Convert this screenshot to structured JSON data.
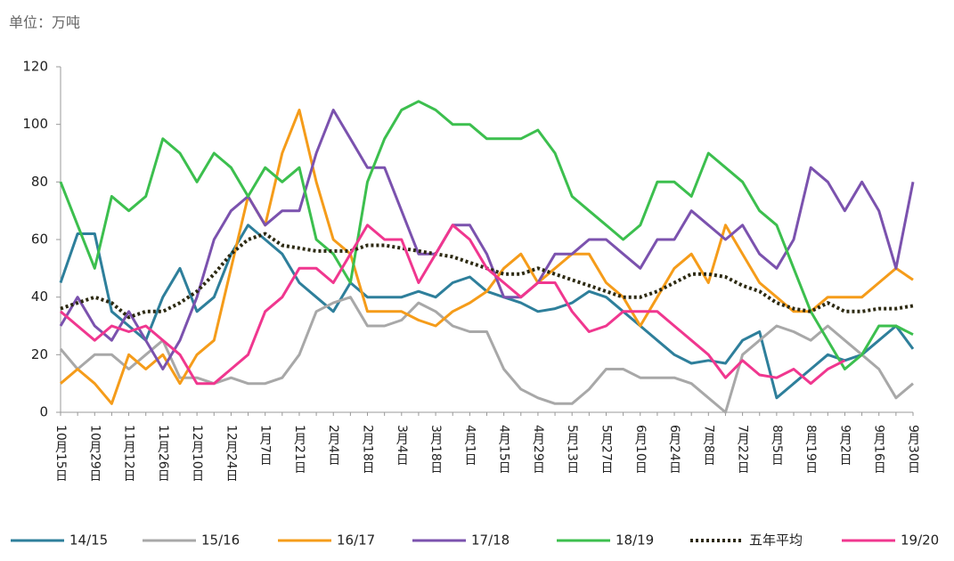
{
  "chart_data": {
    "type": "line",
    "unit_label": "单位：万吨",
    "categories": [
      "10月15日",
      null,
      "10月29日",
      null,
      "11月12日",
      null,
      "11月26日",
      null,
      "12月10日",
      null,
      "12月24日",
      null,
      "1月7日",
      null,
      "1月21日",
      null,
      "2月4日",
      null,
      "2月18日",
      null,
      "3月4日",
      null,
      "3月18日",
      null,
      "4月1日",
      null,
      "4月15日",
      null,
      "4月29日",
      null,
      "5月13日",
      null,
      "5月27日",
      null,
      "6月10日",
      null,
      "6月24日",
      null,
      "7月8日",
      null,
      "7月22日",
      null,
      "8月5日",
      null,
      "8月19日",
      null,
      "9月2日",
      null,
      "9月16日",
      null,
      "9月30日"
    ],
    "ylim": [
      0,
      120
    ],
    "yticks": [
      0,
      20,
      40,
      60,
      80,
      100,
      120
    ],
    "series": [
      {
        "name": "14/15",
        "color": "#2e7f9b",
        "dash": false,
        "values": [
          45,
          62,
          62,
          35,
          30,
          25,
          40,
          50,
          35,
          40,
          55,
          65,
          60,
          55,
          45,
          40,
          35,
          45,
          40,
          40,
          40,
          42,
          40,
          45,
          47,
          42,
          40,
          38,
          35,
          36,
          38,
          42,
          40,
          35,
          30,
          25,
          20,
          17,
          18,
          17,
          25,
          28,
          5,
          10,
          15,
          20,
          18,
          20,
          25,
          30,
          22
        ]
      },
      {
        "name": "15/16",
        "color": "#a8a8a8",
        "dash": false,
        "values": [
          22,
          15,
          20,
          20,
          15,
          20,
          25,
          12,
          12,
          10,
          12,
          10,
          10,
          12,
          20,
          35,
          38,
          40,
          30,
          30,
          32,
          38,
          35,
          30,
          28,
          28,
          15,
          8,
          5,
          3,
          3,
          8,
          15,
          15,
          12,
          12,
          12,
          10,
          5,
          0,
          20,
          25,
          30,
          28,
          25,
          30,
          25,
          20,
          15,
          5,
          10
        ]
      },
      {
        "name": "16/17",
        "color": "#f59c1a",
        "dash": false,
        "values": [
          10,
          15,
          10,
          3,
          20,
          15,
          20,
          10,
          20,
          25,
          50,
          75,
          65,
          90,
          105,
          80,
          60,
          55,
          35,
          35,
          35,
          32,
          30,
          35,
          38,
          42,
          50,
          55,
          45,
          50,
          55,
          55,
          45,
          40,
          30,
          40,
          50,
          55,
          45,
          65,
          55,
          45,
          40,
          35,
          35,
          40,
          40,
          40,
          45,
          50,
          46
        ]
      },
      {
        "name": "17/18",
        "color": "#7b52ae",
        "dash": false,
        "values": [
          30,
          40,
          30,
          25,
          35,
          25,
          15,
          25,
          40,
          60,
          70,
          75,
          65,
          70,
          70,
          90,
          105,
          95,
          85,
          85,
          70,
          55,
          55,
          65,
          65,
          55,
          40,
          40,
          45,
          55,
          55,
          60,
          60,
          55,
          50,
          60,
          60,
          70,
          65,
          60,
          65,
          55,
          50,
          60,
          85,
          80,
          70,
          80,
          70,
          50,
          80
        ]
      },
      {
        "name": "18/19",
        "color": "#3cbf4e",
        "dash": false,
        "values": [
          80,
          65,
          50,
          75,
          70,
          75,
          95,
          90,
          80,
          90,
          85,
          75,
          85,
          80,
          85,
          60,
          55,
          45,
          80,
          95,
          105,
          108,
          105,
          100,
          100,
          95,
          95,
          95,
          98,
          90,
          75,
          70,
          65,
          60,
          65,
          80,
          80,
          75,
          90,
          85,
          80,
          70,
          65,
          50,
          35,
          25,
          15,
          20,
          30,
          30,
          27
        ]
      },
      {
        "name": "五年平均",
        "color": "#2d2a12",
        "dash": true,
        "values": [
          36,
          38,
          40,
          38,
          33,
          35,
          35,
          38,
          42,
          48,
          55,
          60,
          62,
          58,
          57,
          56,
          56,
          56,
          58,
          58,
          57,
          56,
          55,
          54,
          52,
          50,
          48,
          48,
          50,
          48,
          46,
          44,
          42,
          40,
          40,
          42,
          45,
          48,
          48,
          47,
          44,
          42,
          38,
          36,
          35,
          38,
          35,
          35,
          36,
          36,
          37
        ]
      },
      {
        "name": "19/20",
        "color": "#f0378f",
        "dash": false,
        "values": [
          35,
          30,
          25,
          30,
          28,
          30,
          25,
          20,
          10,
          10,
          15,
          20,
          35,
          40,
          50,
          50,
          45,
          55,
          65,
          60,
          60,
          45,
          55,
          65,
          60,
          50,
          45,
          40,
          45,
          45,
          35,
          28,
          30,
          35,
          35,
          35,
          30,
          25,
          20,
          12,
          18,
          13,
          12,
          15,
          10,
          15,
          18,
          null,
          null,
          null,
          null
        ]
      }
    ]
  }
}
